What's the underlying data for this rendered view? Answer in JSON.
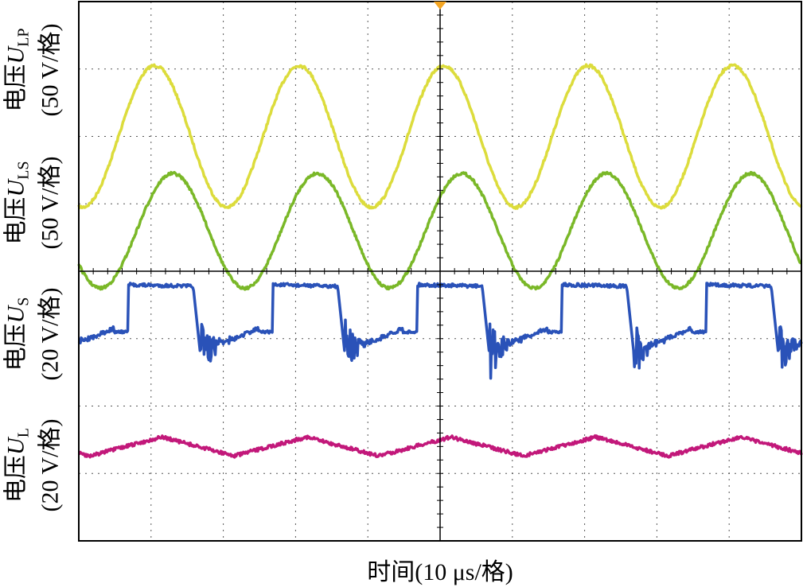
{
  "chart_data": {
    "type": "line",
    "title": "",
    "xlabel": "时间(10 μs/格)",
    "x_divisions": 10,
    "y_divisions": 8,
    "grid": true,
    "x_range_us": [
      0,
      100
    ],
    "period_us": 20,
    "series": [
      {
        "label_main": "电压",
        "label_symbol": "U",
        "label_sub": "LP",
        "label_scale": "(50 V/格)",
        "color": "#dcdc3c",
        "shape": "sine",
        "zero_div": 2.0,
        "amplitude_div": 1.05,
        "phase_us": 5.5
      },
      {
        "label_main": "电压",
        "label_symbol": "U",
        "label_sub": "LS",
        "label_scale": "(50 V/格)",
        "color": "#7ab828",
        "shape": "sine",
        "zero_div": 3.4,
        "amplitude_div": 0.85,
        "phase_us": 8.0
      },
      {
        "label_main": "电压",
        "label_symbol": "U",
        "label_sub": "S",
        "label_scale": "(20 V/格)",
        "color": "#2a52b8",
        "shape": "square-ringing",
        "high_div": 4.2,
        "low_div": 5.2,
        "step_div": 4.9,
        "phase_us": 6.8
      },
      {
        "label_main": "电压",
        "label_symbol": "U",
        "label_sub": "L",
        "label_scale": "(20 V/格)",
        "color": "#c2187a",
        "shape": "triangle",
        "zero_div": 6.6,
        "amplitude_div": 0.14,
        "phase_us": 1.5
      }
    ]
  }
}
